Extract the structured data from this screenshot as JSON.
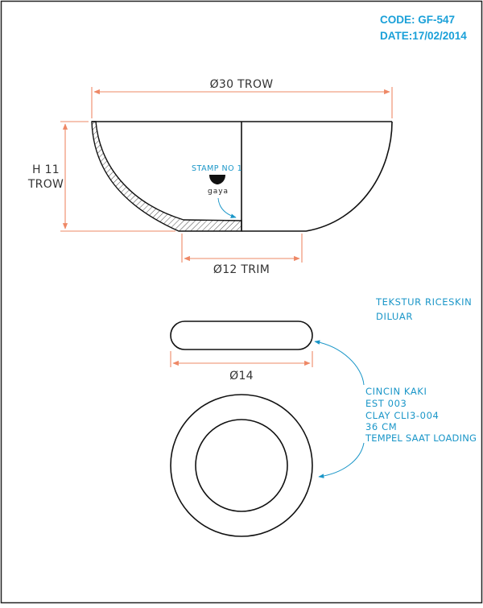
{
  "header": {
    "code_line": "CODE: GF-547",
    "date_line": "DATE:17/02/2014"
  },
  "dimensions": {
    "top_diameter": "Ø30 TROW",
    "height_line1": "H 11",
    "height_line2": "TROW",
    "trim_diameter": "Ø12 TRIM",
    "ring_diameter": "Ø14"
  },
  "stamp": {
    "label": "STAMP NO 1",
    "logo_text": "gaya"
  },
  "notes": {
    "texture": [
      "TEKSTUR RICESKIN",
      "DILUAR"
    ],
    "foot_ring": [
      "CINCIN KAKI",
      "EST 003",
      "CLAY CLI3-004",
      "36 CM",
      "TEMPEL SAAT LOADING"
    ]
  },
  "colors": {
    "title_blue": "#1aa0d8",
    "note_blue": "#1a96c8",
    "dimension_orange": "#ee8866",
    "outline": "#111111"
  }
}
